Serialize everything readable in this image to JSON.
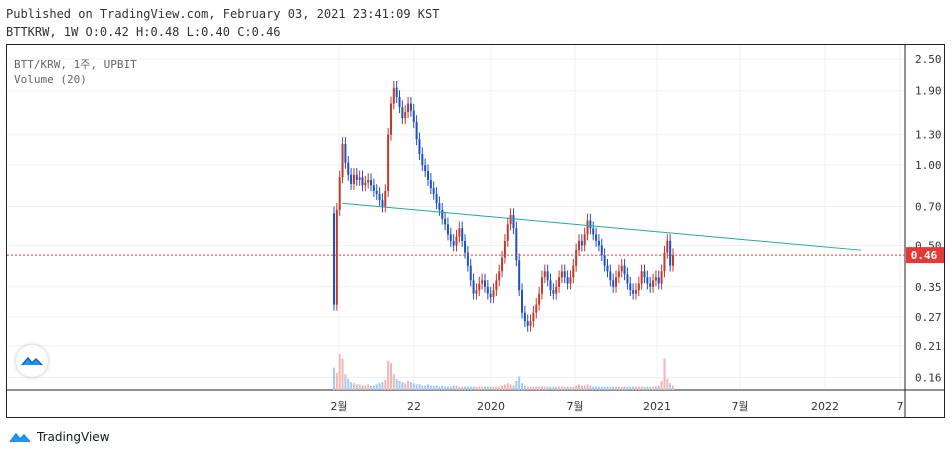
{
  "header": {
    "published": "Published on TradingView.com, February 03, 2021 23:41:09 KST",
    "ohlc_line": "BTTKRW, 1W O:0.42 H:0.48 L:0.40 C:0.46"
  },
  "legend": {
    "symbol": "BTT/KRW, 1주, UPBIT",
    "volume": "Volume (20)"
  },
  "brand": {
    "name": "TradingView"
  },
  "icons": {
    "badge": "tradingview-logo-icon",
    "brand": "tradingview-cloud-icon"
  },
  "colors": {
    "up": "#ef5350",
    "down": "#2962ff",
    "up_candle": "#c0392b",
    "down_candle": "#1e50c8",
    "trendline": "#26a69a",
    "price_line": "#e53935",
    "price_label_bg": "#e53935",
    "volume_up": "#f4b6b3",
    "volume_down": "#a9c8f0",
    "grid": "#eef0f3"
  },
  "chart_data": {
    "type": "candlestick",
    "symbol": "BTT/KRW",
    "interval": "1주",
    "exchange": "UPBIT",
    "y_scale": "log",
    "ylim": [
      0.15,
      2.7
    ],
    "y_ticks": [
      "2.50",
      "1.90",
      "1.30",
      "1.00",
      "0.70",
      "0.50",
      "0.35",
      "0.27",
      "0.21",
      "0.16"
    ],
    "x_ticks": [
      "2월",
      "22",
      "2020",
      "7월",
      "2021",
      "7월",
      "2022",
      "7"
    ],
    "last_price": "0.46",
    "ohlc": {
      "open": 0.42,
      "high": 0.48,
      "low": 0.4,
      "close": 0.46
    },
    "trendline": {
      "from": {
        "date": "2019-02",
        "price": 0.72
      },
      "to": {
        "date": "2022-02",
        "price": 0.48
      }
    },
    "series_close": [
      0.3,
      0.68,
      0.9,
      1.2,
      1.02,
      0.92,
      0.85,
      0.92,
      0.88,
      0.9,
      0.84,
      0.86,
      0.88,
      0.84,
      0.8,
      0.78,
      0.74,
      0.7,
      0.8,
      1.3,
      1.7,
      1.95,
      1.8,
      1.65,
      1.5,
      1.58,
      1.7,
      1.6,
      1.45,
      1.25,
      1.1,
      1.0,
      0.95,
      0.88,
      0.82,
      0.78,
      0.72,
      0.68,
      0.63,
      0.6,
      0.55,
      0.52,
      0.5,
      0.54,
      0.58,
      0.52,
      0.47,
      0.42,
      0.37,
      0.33,
      0.34,
      0.36,
      0.37,
      0.35,
      0.33,
      0.32,
      0.34,
      0.37,
      0.4,
      0.45,
      0.52,
      0.6,
      0.65,
      0.58,
      0.44,
      0.34,
      0.28,
      0.26,
      0.25,
      0.26,
      0.28,
      0.3,
      0.33,
      0.38,
      0.4,
      0.37,
      0.34,
      0.33,
      0.35,
      0.38,
      0.4,
      0.38,
      0.36,
      0.38,
      0.42,
      0.48,
      0.52,
      0.5,
      0.55,
      0.62,
      0.58,
      0.55,
      0.52,
      0.5,
      0.46,
      0.42,
      0.4,
      0.37,
      0.35,
      0.38,
      0.4,
      0.42,
      0.39,
      0.36,
      0.34,
      0.33,
      0.34,
      0.36,
      0.4,
      0.38,
      0.36,
      0.35,
      0.37,
      0.38,
      0.36,
      0.4,
      0.47,
      0.52,
      0.42,
      0.46
    ],
    "volume": [
      20,
      15,
      32,
      28,
      14,
      10,
      7,
      6,
      5,
      5,
      4,
      4,
      5,
      4,
      4,
      5,
      6,
      7,
      9,
      26,
      24,
      14,
      10,
      8,
      7,
      6,
      8,
      7,
      6,
      5,
      5,
      4,
      4,
      5,
      4,
      4,
      4,
      3,
      4,
      3,
      3,
      3,
      4,
      4,
      3,
      3,
      3,
      3,
      3,
      3,
      3,
      3,
      3,
      3,
      3,
      3,
      3,
      3,
      3,
      4,
      5,
      6,
      5,
      4,
      8,
      12,
      6,
      4,
      3,
      3,
      3,
      3,
      3,
      3,
      3,
      3,
      3,
      3,
      3,
      3,
      3,
      3,
      3,
      3,
      3,
      4,
      5,
      4,
      4,
      5,
      4,
      3,
      3,
      3,
      3,
      3,
      3,
      3,
      3,
      3,
      3,
      3,
      3,
      3,
      3,
      3,
      3,
      3,
      3,
      3,
      3,
      3,
      3,
      3,
      4,
      8,
      28,
      10,
      6,
      4
    ]
  }
}
